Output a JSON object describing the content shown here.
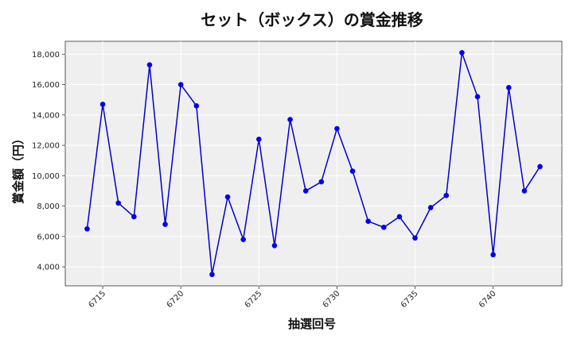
{
  "chart_data": {
    "type": "line",
    "title": "セット（ボックス）の賞金推移",
    "xlabel": "抽選回号",
    "ylabel": "賞金額（円）",
    "x": [
      6714,
      6715,
      6716,
      6717,
      6718,
      6719,
      6720,
      6721,
      6722,
      6723,
      6724,
      6725,
      6726,
      6727,
      6728,
      6729,
      6730,
      6731,
      6732,
      6733,
      6734,
      6735,
      6736,
      6737,
      6738,
      6739,
      6740,
      6741,
      6742,
      6743
    ],
    "y": [
      6500,
      14700,
      8200,
      7300,
      17300,
      6800,
      16000,
      14600,
      3500,
      8600,
      5800,
      12400,
      5400,
      13700,
      9000,
      9600,
      13100,
      10300,
      7000,
      6600,
      7300,
      5900,
      7900,
      8700,
      18100,
      15200,
      4800,
      15800,
      9000,
      10600
    ],
    "xlim": [
      6712.6,
      6744.4
    ],
    "ylim": [
      2750,
      18850
    ],
    "x_ticks": [
      6715,
      6720,
      6725,
      6730,
      6735,
      6740
    ],
    "x_tick_labels": [
      "6715",
      "6720",
      "6725",
      "6730",
      "6735",
      "6740"
    ],
    "y_ticks": [
      4000,
      6000,
      8000,
      10000,
      12000,
      14000,
      16000,
      18000
    ],
    "y_tick_labels": [
      "4,000",
      "6,000",
      "8,000",
      "10,000",
      "12,000",
      "14,000",
      "16,000",
      "18,000"
    ],
    "grid": true,
    "line_color": "#0000cc",
    "marker_color": "#0000ee",
    "plot_background": "#efefef"
  }
}
